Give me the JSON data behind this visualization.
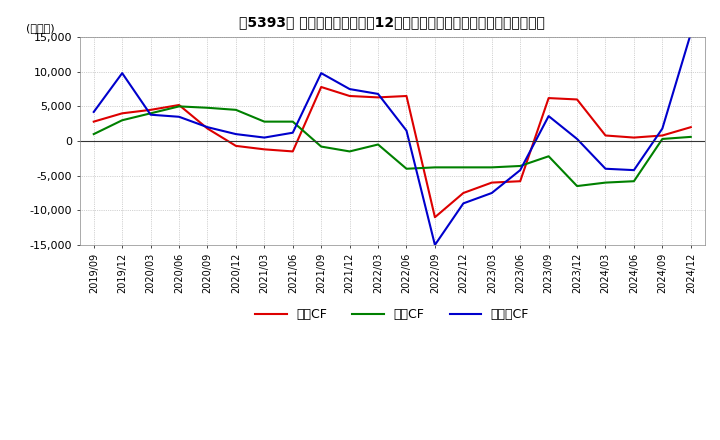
{
  "title": "【5393】 キャッシュフローの12か月移動合計の対前年同期増減額の推移",
  "ylabel": "(百万円)",
  "ylim": [
    -15000,
    15000
  ],
  "yticks": [
    -15000,
    -10000,
    -5000,
    0,
    5000,
    10000,
    15000
  ],
  "labels": [
    "2019/09",
    "2019/12",
    "2020/03",
    "2020/06",
    "2020/09",
    "2020/12",
    "2021/03",
    "2021/06",
    "2021/09",
    "2021/12",
    "2022/03",
    "2022/06",
    "2022/09",
    "2022/12",
    "2023/03",
    "2023/06",
    "2023/09",
    "2023/12",
    "2024/03",
    "2024/06",
    "2024/09",
    "2024/12"
  ],
  "series": {
    "営業CF": {
      "color": "#dd0000",
      "data": [
        2800,
        4000,
        4500,
        5200,
        1800,
        -700,
        -1200,
        -1500,
        7800,
        6500,
        6300,
        6500,
        -11000,
        -7500,
        -6000,
        -5800,
        6200,
        6000,
        800,
        500,
        800,
        2000
      ]
    },
    "投資CF": {
      "color": "#008000",
      "data": [
        1000,
        3000,
        4000,
        5000,
        4800,
        4500,
        2800,
        2800,
        -800,
        -1500,
        -500,
        -4000,
        -3800,
        -3800,
        -3800,
        -3600,
        -2200,
        -6500,
        -6000,
        -5800,
        300,
        600
      ]
    },
    "フリーCF": {
      "color": "#0000cc",
      "data": [
        4200,
        9800,
        3800,
        3500,
        2000,
        1000,
        500,
        1200,
        9800,
        7500,
        6800,
        1500,
        -15000,
        -9000,
        -7500,
        -4200,
        3600,
        300,
        -4000,
        -4200,
        1800,
        15500
      ]
    }
  },
  "legend_order": [
    "営業CF",
    "投資CF",
    "フリーCF"
  ],
  "bg_color": "#ffffff",
  "grid_color": "#aaaaaa",
  "grid_style": ":"
}
